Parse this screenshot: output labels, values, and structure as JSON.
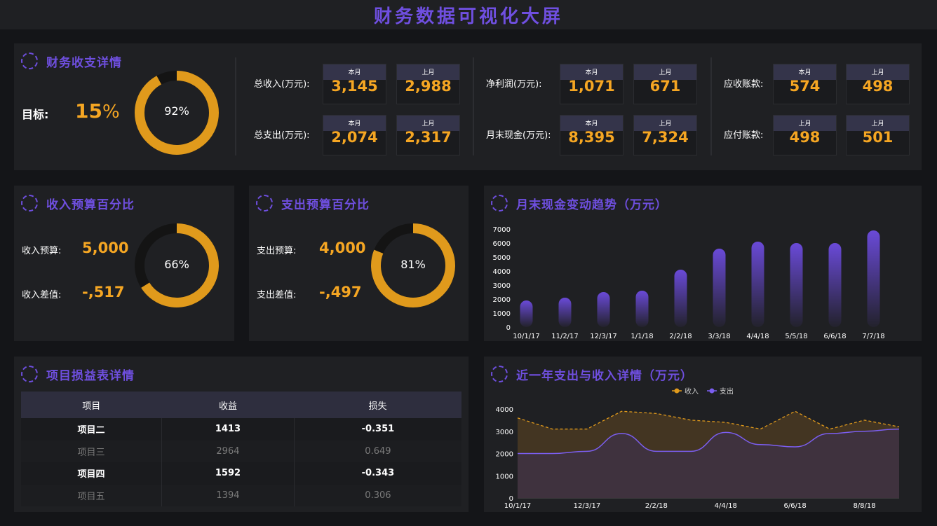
{
  "header": {
    "title": "财务数据可视化大屏"
  },
  "finance": {
    "title": "财务收支详情",
    "target_label": "目标:",
    "target_value": "15",
    "target_unit": "%",
    "donut_text": "92%",
    "donut_pct": 0.92,
    "groups": [
      {
        "label": "总收入(万元):",
        "cur_head": "本月",
        "cur": "3,145",
        "prev_head": "上月",
        "prev": "2,988"
      },
      {
        "label": "总支出(万元):",
        "cur_head": "本月",
        "cur": "2,074",
        "prev_head": "上月",
        "prev": "2,317"
      },
      {
        "label": "净利润(万元):",
        "cur_head": "本月",
        "cur": "1,071",
        "prev_head": "上月",
        "prev": "671"
      },
      {
        "label": "月末现金(万元):",
        "cur_head": "本月",
        "cur": "8,395",
        "prev_head": "上月",
        "prev": "7,324"
      },
      {
        "label": "应收账款:",
        "cur_head": "本月",
        "cur": "574",
        "prev_head": "上月",
        "prev": "498"
      },
      {
        "label": "应付账款:",
        "cur_head": "上月",
        "cur": "498",
        "prev_head": "上月",
        "prev": "501"
      }
    ]
  },
  "income_budget": {
    "title": "收入预算百分比",
    "budget_label": "收入预算:",
    "budget_value": "5,000",
    "diff_label": "收入差值:",
    "diff_value": "-,517",
    "donut_text": "66%",
    "donut_pct": 0.66
  },
  "expense_budget": {
    "title": "支出预算百分比",
    "budget_label": "支出预算:",
    "budget_value": "4,000",
    "diff_label": "支出差值:",
    "diff_value": "-,497",
    "donut_text": "81%",
    "donut_pct": 0.81
  },
  "project_table": {
    "title": "项目损益表详情",
    "headers": [
      "项目",
      "收益",
      "损失"
    ],
    "rows": [
      [
        "项目二",
        "1413",
        "-0.351"
      ],
      [
        "项目三",
        "2964",
        "0.649"
      ],
      [
        "项目四",
        "1592",
        "-0.343"
      ],
      [
        "项目五",
        "1394",
        "0.306"
      ]
    ]
  },
  "colors": {
    "accent": "#6f4fe0",
    "orange": "#f5a623",
    "bar": "#6a4ad8",
    "ring_bg": "#141414"
  },
  "chart_data": [
    {
      "type": "bar",
      "title": "月末现金变动趋势（万元）",
      "categories": [
        "10/1/17",
        "11/2/17",
        "12/3/17",
        "1/1/18",
        "2/2/18",
        "3/3/18",
        "4/4/18",
        "5/5/18",
        "6/6/18",
        "7/7/18"
      ],
      "values": [
        1900,
        2100,
        2500,
        2600,
        4100,
        5600,
        6100,
        6000,
        6000,
        6900
      ],
      "ylim": [
        0,
        7000
      ],
      "yticks": [
        0,
        1000,
        2000,
        3000,
        4000,
        5000,
        6000,
        7000
      ],
      "grid": false
    },
    {
      "type": "area",
      "title": "近一年支出与收入详情（万元）",
      "x": [
        "10/1/17",
        "11/2/17",
        "12/3/17",
        "1/1/18",
        "2/2/18",
        "3/3/18",
        "4/4/18",
        "5/5/18",
        "6/6/18",
        "7/7/18",
        "8/8/18",
        "9/9/18"
      ],
      "xticks": [
        "10/1/17",
        "12/3/17",
        "2/2/18",
        "4/4/18",
        "6/6/18",
        "8/8/18"
      ],
      "series": [
        {
          "name": "收入",
          "values": [
            3600,
            3100,
            3100,
            3900,
            3800,
            3500,
            3400,
            3100,
            3900,
            3100,
            3500,
            3200
          ]
        },
        {
          "name": "支出",
          "values": [
            2000,
            2000,
            2100,
            2900,
            2100,
            2100,
            2950,
            2400,
            2300,
            2900,
            3000,
            3100
          ]
        }
      ],
      "ylim": [
        0,
        4000
      ],
      "yticks": [
        0,
        1000,
        2000,
        3000,
        4000
      ],
      "legend": "top-center",
      "grid": false
    }
  ]
}
